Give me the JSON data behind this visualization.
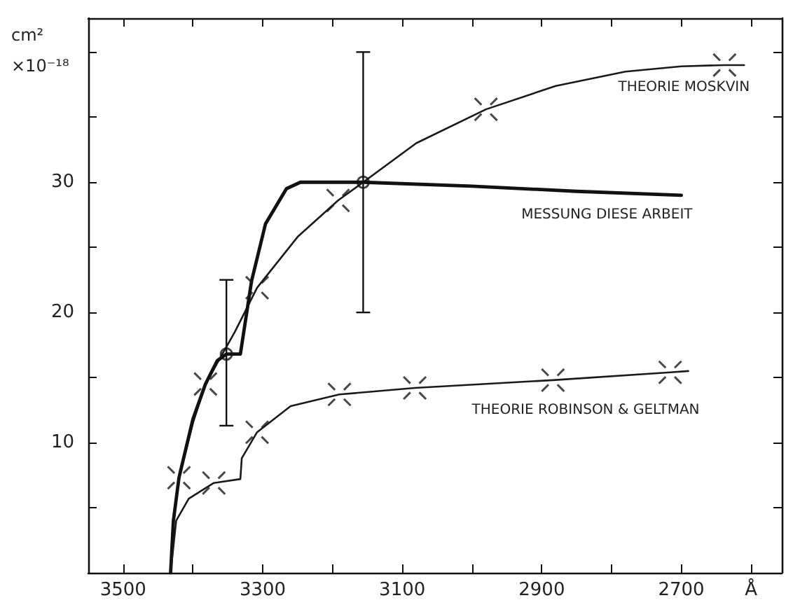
{
  "chart_data": {
    "type": "line",
    "ylabel": "cm²\n×10⁻¹⁸",
    "xlim": [
      3550,
      2556
    ],
    "ylim": [
      0,
      42.6
    ],
    "xticks": [
      3500,
      {
        "value": 3400,
        "label": null
      },
      3300,
      {
        "value": 3200,
        "label": null
      },
      3100,
      {
        "value": 3000,
        "label": null
      },
      2900,
      {
        "value": 2800,
        "label": null
      },
      2700,
      {
        "value": 2600,
        "label": "Å"
      }
    ],
    "yticks": [
      {
        "value": 5,
        "label": null
      },
      10,
      {
        "value": 15,
        "label": null
      },
      20,
      {
        "value": 25,
        "label": null
      },
      30,
      {
        "value": 35,
        "label": null
      },
      {
        "value": 40,
        "label": null
      }
    ],
    "grid": false,
    "legend": false,
    "line_style": "solid",
    "series": [
      {
        "name": "THEORIE MOSKVIN",
        "color": "#1a1a1a",
        "x": [
          3432,
          3428,
          3420,
          3400,
          3382,
          3340,
          3308,
          3250,
          3192,
          3156,
          3080,
          2980,
          2880,
          2780,
          2700,
          2638,
          2610
        ],
        "values": [
          0,
          4,
          7.3,
          11.5,
          14.5,
          18.5,
          21.9,
          25.8,
          28.6,
          30.0,
          33.0,
          35.6,
          37.4,
          38.5,
          38.9,
          39.0,
          39.0
        ]
      },
      {
        "name": "MESSUNG DIESE ARBEIT",
        "color": "#111111",
        "x": [
          3432,
          3428,
          3420,
          3400,
          3382,
          3365,
          3352,
          3332,
          3316,
          3296,
          3266,
          3246,
          3200,
          3156,
          3000,
          2850,
          2700
        ],
        "values": [
          0,
          4,
          7.3,
          11.8,
          14.5,
          16.3,
          16.8,
          16.8,
          22.4,
          26.8,
          29.5,
          30.0,
          30.0,
          30.0,
          29.7,
          29.3,
          29.0
        ],
        "errors": [
          null,
          null,
          null,
          null,
          null,
          null,
          [
            11.3,
            22.5
          ],
          null,
          null,
          null,
          null,
          null,
          null,
          [
            20,
            40
          ],
          null,
          null,
          null
        ]
      },
      {
        "name": "THEORIE ROBINSON & GELTMAN",
        "color": "#1a1a1a",
        "x": [
          3432,
          3424,
          3406,
          3370,
          3332,
          3330,
          3308,
          3260,
          3190,
          3082,
          2884,
          2716,
          2690
        ],
        "values": [
          0,
          4,
          5.7,
          6.9,
          7.2,
          8.8,
          10.8,
          12.8,
          13.7,
          14.2,
          14.8,
          15.4,
          15.5
        ]
      },
      {
        "type": "scatter",
        "marker": "circle",
        "color": "#111111",
        "x": [
          3352,
          3156
        ],
        "values": [
          16.8,
          30.0
        ]
      },
      {
        "type": "scatter",
        "marker": "cross",
        "color": "#1a1a1a",
        "x": [
          3420,
          3382,
          3308,
          3192,
          2980,
          2638,
          3370,
          3308,
          3190,
          3082,
          2884,
          2716
        ],
        "values": [
          7.3,
          14.5,
          21.9,
          28.6,
          35.6,
          39.0,
          6.9,
          10.8,
          13.7,
          14.2,
          14.8,
          15.4
        ]
      }
    ]
  }
}
